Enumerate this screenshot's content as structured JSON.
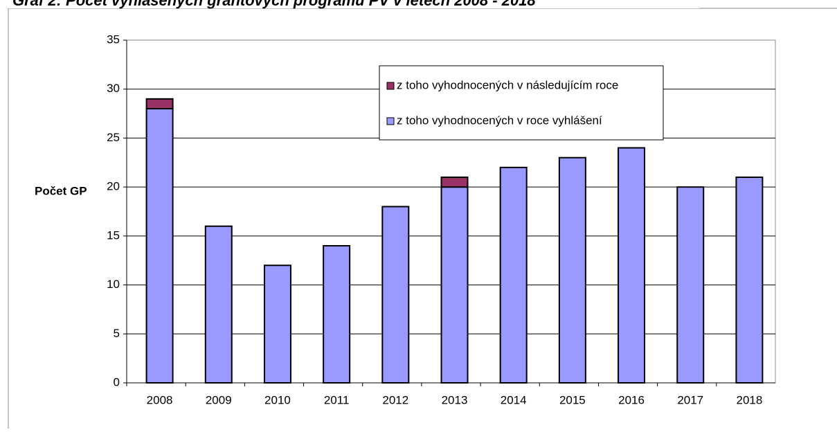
{
  "chart_data": {
    "type": "stacked_bar",
    "title": "Graf 2: Počet vyhlášených grantových programů PV v letech 2008 - 2018",
    "y_label": "Počet GP",
    "categories": [
      "2008",
      "2009",
      "2010",
      "2011",
      "2012",
      "2013",
      "2014",
      "2015",
      "2016",
      "2017",
      "2018"
    ],
    "series": [
      {
        "name": "z toho vyhodnocených v roce vyhlášení",
        "color": "#9999ff",
        "values": [
          28,
          16,
          12,
          14,
          18,
          20,
          22,
          23,
          24,
          20,
          21
        ]
      },
      {
        "name": "z toho vyhodnocených v následujícím roce",
        "color": "#993366",
        "values": [
          1,
          0,
          0,
          0,
          0,
          1,
          0,
          0,
          0,
          0,
          0
        ]
      }
    ],
    "ylim": [
      0,
      35
    ],
    "yticks": [
      0,
      5,
      10,
      15,
      20,
      25,
      30,
      35
    ],
    "grid": true
  }
}
